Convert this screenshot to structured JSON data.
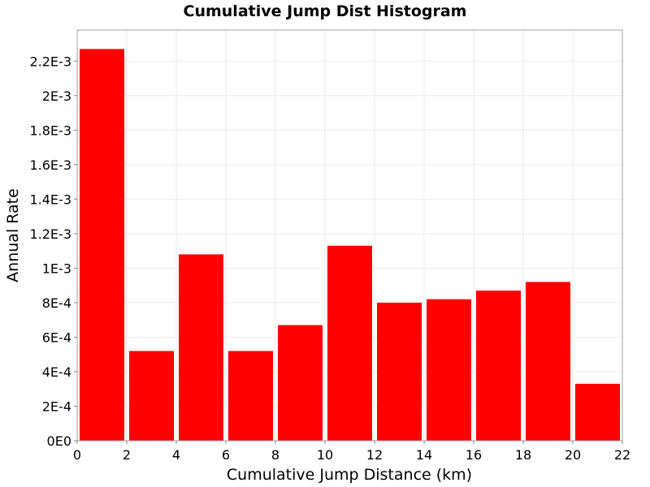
{
  "chart_data": {
    "type": "bar",
    "title": "Cumulative Jump Dist Histogram",
    "xlabel": "Cumulative Jump Distance (km)",
    "ylabel": "Annual Rate",
    "xlim": [
      0,
      22
    ],
    "ylim": [
      0,
      0.00238
    ],
    "x_ticks": [
      0,
      2,
      4,
      6,
      8,
      10,
      12,
      14,
      16,
      18,
      20,
      22
    ],
    "x_tick_labels": [
      "0",
      "2",
      "4",
      "6",
      "8",
      "10",
      "12",
      "14",
      "16",
      "18",
      "20",
      "22"
    ],
    "y_ticks": [
      0,
      0.0002,
      0.0004,
      0.0006,
      0.0008,
      0.001,
      0.0012,
      0.0014,
      0.0016,
      0.0018,
      0.002,
      0.0022
    ],
    "y_tick_labels": [
      "0E0",
      "2E-4",
      "4E-4",
      "6E-4",
      "8E-4",
      "1E-3",
      "1.2E-3",
      "1.4E-3",
      "1.6E-3",
      "1.8E-3",
      "2E-3",
      "2.2E-3"
    ],
    "bin_width": 2,
    "bins": [
      {
        "x": 1,
        "value": 0.00227
      },
      {
        "x": 3,
        "value": 0.00052
      },
      {
        "x": 5,
        "value": 0.00108
      },
      {
        "x": 7,
        "value": 0.00052
      },
      {
        "x": 9,
        "value": 0.00067
      },
      {
        "x": 11,
        "value": 0.00113
      },
      {
        "x": 13,
        "value": 0.0008
      },
      {
        "x": 15,
        "value": 0.00082
      },
      {
        "x": 17,
        "value": 0.00087
      },
      {
        "x": 19,
        "value": 0.00092
      },
      {
        "x": 21,
        "value": 0.00033
      }
    ],
    "bar_color": "#ff0000",
    "grid": true,
    "legend": "none"
  }
}
